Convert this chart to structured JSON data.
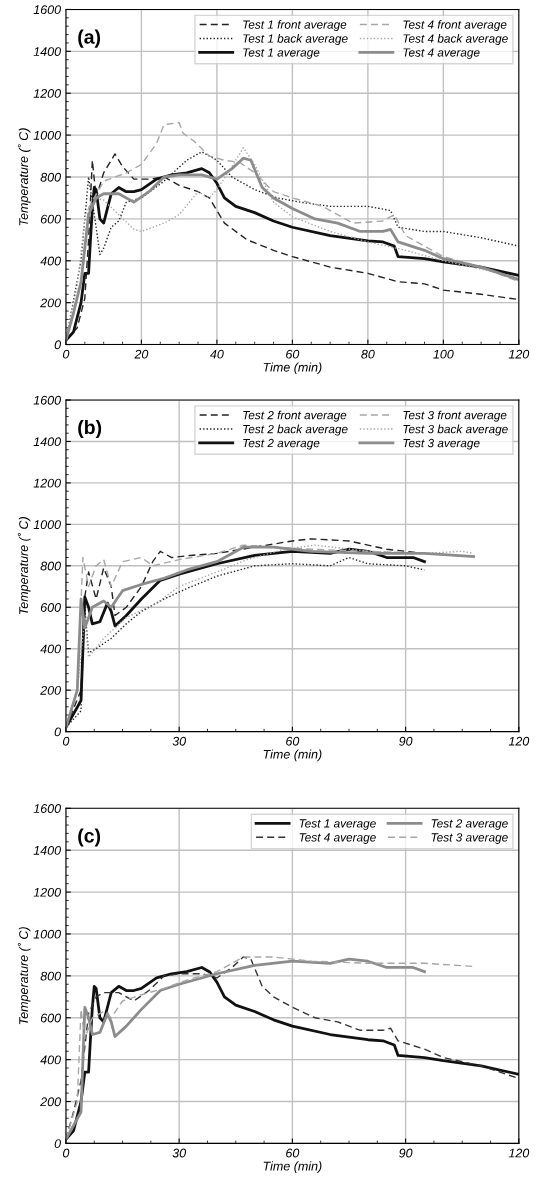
{
  "chart_data": [
    {
      "type": "line",
      "annotations": [
        "(a)"
      ],
      "xlabel": "Time (min)",
      "ylabel": "Temperature (˚ C)",
      "xlim": [
        0,
        120
      ],
      "ylim": [
        0,
        1600
      ],
      "xticks": [
        0,
        20,
        40,
        60,
        80,
        100,
        120
      ],
      "yticks": [
        0,
        200,
        400,
        600,
        800,
        1000,
        1200,
        1400,
        1600
      ],
      "grid": true,
      "legend": "top right",
      "series": [
        {
          "name": "Test 1 front average",
          "color": "#222222",
          "line_style": "dashed",
          "x": [
            0,
            3,
            5,
            6,
            7,
            8,
            10,
            13,
            15,
            18,
            22,
            26,
            30,
            35,
            38,
            42,
            48,
            55,
            60,
            70,
            80,
            88,
            95,
            100,
            110,
            120
          ],
          "values": [
            20,
            80,
            220,
            500,
            880,
            700,
            820,
            910,
            850,
            790,
            790,
            800,
            760,
            730,
            700,
            580,
            500,
            450,
            420,
            370,
            340,
            300,
            290,
            260,
            240,
            215
          ]
        },
        {
          "name": "Test 1 back average",
          "color": "#222222",
          "line_style": "dotted",
          "x": [
            0,
            4,
            6,
            8,
            9,
            10,
            12,
            14,
            16,
            20,
            26,
            32,
            36,
            40,
            44,
            50,
            56,
            62,
            70,
            80,
            86,
            88,
            95,
            100,
            110,
            120
          ],
          "values": [
            20,
            400,
            800,
            560,
            430,
            460,
            560,
            590,
            680,
            700,
            780,
            880,
            920,
            880,
            800,
            740,
            700,
            680,
            660,
            660,
            640,
            560,
            540,
            540,
            510,
            470
          ]
        },
        {
          "name": "Test 1 average",
          "color": "#111111",
          "line_style": "solid",
          "x": [
            0,
            2,
            4,
            5,
            6,
            6.5,
            7,
            7.5,
            8,
            9,
            10,
            11,
            12,
            14,
            16,
            18,
            20,
            24,
            28,
            32,
            36,
            38,
            40,
            42,
            45,
            50,
            55,
            60,
            70,
            80,
            84,
            87,
            88,
            95,
            100,
            110,
            120
          ],
          "values": [
            20,
            60,
            200,
            340,
            340,
            500,
            650,
            750,
            740,
            600,
            580,
            650,
            720,
            750,
            730,
            730,
            740,
            790,
            810,
            820,
            840,
            820,
            770,
            700,
            660,
            630,
            590,
            560,
            520,
            495,
            490,
            470,
            420,
            410,
            395,
            370,
            330
          ]
        },
        {
          "name": "Test 4 front average",
          "color": "#a6a6a6",
          "line_style": "dashed",
          "x": [
            0,
            4,
            6,
            10,
            16,
            20,
            24,
            26,
            30,
            31,
            34,
            38,
            42,
            46,
            50,
            55,
            60,
            68,
            76,
            84,
            87,
            90,
            100,
            110,
            120
          ],
          "values": [
            20,
            300,
            650,
            780,
            820,
            860,
            960,
            1050,
            1060,
            1010,
            970,
            900,
            880,
            870,
            820,
            730,
            700,
            660,
            580,
            590,
            620,
            520,
            420,
            370,
            300
          ]
        },
        {
          "name": "Test 4 back average",
          "color": "#a6a6a6",
          "line_style": "dotted",
          "x": [
            0,
            3,
            5,
            7,
            10,
            14,
            18,
            20,
            26,
            30,
            35,
            38,
            40,
            44,
            47,
            50,
            55,
            60,
            70,
            80,
            90,
            100,
            110,
            120
          ],
          "values": [
            20,
            280,
            600,
            700,
            690,
            620,
            550,
            540,
            580,
            620,
            730,
            700,
            740,
            850,
            940,
            860,
            680,
            610,
            540,
            490,
            450,
            400,
            360,
            320
          ]
        },
        {
          "name": "Test 4 average",
          "color": "#8c8c8c",
          "line_style": "solid",
          "x": [
            0,
            2,
            4,
            6,
            8,
            10,
            14,
            18,
            22,
            26,
            30,
            36,
            40,
            44,
            47,
            49,
            52,
            55,
            60,
            66,
            72,
            78,
            84,
            86,
            88,
            95,
            100,
            110,
            120
          ],
          "values": [
            20,
            150,
            300,
            620,
            700,
            720,
            720,
            680,
            730,
            800,
            810,
            810,
            790,
            840,
            890,
            880,
            750,
            700,
            650,
            600,
            580,
            540,
            540,
            550,
            490,
            450,
            410,
            370,
            310
          ]
        }
      ]
    },
    {
      "type": "line",
      "annotations": [
        "(b)"
      ],
      "xlabel": "Time (min)",
      "ylabel": "Temperature (˚ C)",
      "xlim": [
        0,
        120
      ],
      "ylim": [
        0,
        1600
      ],
      "xticks": [
        0,
        30,
        60,
        90,
        120
      ],
      "yticks": [
        0,
        200,
        400,
        600,
        800,
        1000,
        1200,
        1400,
        1600
      ],
      "grid": true,
      "legend": "top right",
      "series": [
        {
          "name": "Test 2 front average",
          "color": "#222222",
          "line_style": "dashed",
          "x": [
            0,
            4,
            5,
            6,
            8,
            10,
            12,
            13,
            16,
            20,
            23,
            25,
            28,
            33,
            40,
            50,
            60,
            65,
            75,
            85,
            95
          ],
          "values": [
            20,
            200,
            650,
            770,
            640,
            790,
            700,
            560,
            600,
            700,
            820,
            870,
            840,
            850,
            860,
            890,
            920,
            930,
            920,
            880,
            860
          ]
        },
        {
          "name": "Test 2 back average",
          "color": "#222222",
          "line_style": "dotted",
          "x": [
            0,
            4,
            5,
            6,
            8,
            12,
            16,
            20,
            26,
            32,
            40,
            50,
            60,
            70,
            75,
            80,
            90,
            95
          ],
          "values": [
            20,
            100,
            600,
            380,
            400,
            450,
            520,
            580,
            640,
            690,
            750,
            800,
            810,
            800,
            840,
            810,
            800,
            780
          ]
        },
        {
          "name": "Test 2 average",
          "color": "#111111",
          "line_style": "solid",
          "x": [
            0,
            4,
            5,
            6,
            7,
            9,
            11,
            12,
            13,
            16,
            20,
            25,
            30,
            40,
            50,
            60,
            70,
            75,
            80,
            85,
            92,
            95
          ],
          "values": [
            20,
            150,
            650,
            600,
            520,
            530,
            620,
            580,
            510,
            560,
            640,
            730,
            760,
            810,
            850,
            870,
            860,
            880,
            870,
            840,
            840,
            820
          ]
        },
        {
          "name": "Test 3 front average",
          "color": "#a6a6a6",
          "line_style": "dashed",
          "x": [
            0,
            3,
            4.5,
            6,
            8,
            10,
            12,
            15,
            20,
            23,
            30,
            40,
            47,
            55,
            65,
            80,
            95,
            105,
            108
          ],
          "values": [
            20,
            200,
            840,
            700,
            800,
            830,
            700,
            820,
            840,
            800,
            830,
            860,
            900,
            890,
            880,
            870,
            860,
            850,
            840
          ]
        },
        {
          "name": "Test 3 back average",
          "color": "#a6a6a6",
          "line_style": "dotted",
          "x": [
            0,
            3,
            5,
            6,
            10,
            16,
            24,
            30,
            40,
            48,
            58,
            66,
            80,
            95,
            105,
            108
          ],
          "values": [
            20,
            200,
            550,
            360,
            450,
            550,
            620,
            700,
            770,
            830,
            880,
            900,
            870,
            860,
            870,
            860
          ]
        },
        {
          "name": "Test 3 average",
          "color": "#8c8c8c",
          "line_style": "solid",
          "x": [
            0,
            3,
            4,
            5,
            7,
            10,
            12,
            15,
            20,
            26,
            32,
            40,
            47,
            55,
            65,
            80,
            95,
            108
          ],
          "values": [
            20,
            200,
            640,
            500,
            600,
            630,
            600,
            680,
            710,
            740,
            780,
            820,
            890,
            890,
            870,
            860,
            860,
            845
          ]
        }
      ]
    },
    {
      "type": "line",
      "annotations": [
        "(c)"
      ],
      "xlabel": "Time (min)",
      "ylabel": "Temperature (˚ C)",
      "xlim": [
        0,
        120
      ],
      "ylim": [
        0,
        1600
      ],
      "xticks": [
        0,
        30,
        60,
        90,
        120
      ],
      "yticks": [
        0,
        200,
        400,
        600,
        800,
        1000,
        1200,
        1400,
        1600
      ],
      "grid": true,
      "legend": "top right",
      "series": [
        {
          "name": "Test 1 average",
          "color": "#111111",
          "line_style": "solid",
          "x": [
            0,
            2,
            4,
            5,
            6,
            6.5,
            7,
            7.5,
            8,
            9,
            10,
            11,
            12,
            14,
            16,
            18,
            20,
            24,
            28,
            32,
            36,
            38,
            40,
            42,
            45,
            50,
            55,
            60,
            70,
            80,
            84,
            87,
            88,
            95,
            100,
            110,
            120
          ],
          "values": [
            20,
            60,
            200,
            340,
            340,
            500,
            650,
            750,
            740,
            600,
            580,
            650,
            720,
            750,
            730,
            730,
            740,
            790,
            810,
            820,
            840,
            820,
            770,
            700,
            660,
            630,
            590,
            560,
            520,
            495,
            490,
            470,
            420,
            410,
            395,
            370,
            330
          ]
        },
        {
          "name": "Test 4 average",
          "color": "#333333",
          "line_style": "dashed",
          "x": [
            0,
            2,
            4,
            6,
            8,
            10,
            14,
            18,
            22,
            26,
            30,
            36,
            40,
            44,
            47,
            49,
            52,
            55,
            60,
            66,
            72,
            78,
            84,
            86,
            88,
            95,
            100,
            110,
            120
          ],
          "values": [
            20,
            150,
            300,
            620,
            700,
            720,
            720,
            680,
            730,
            800,
            810,
            810,
            790,
            840,
            890,
            880,
            750,
            700,
            650,
            600,
            580,
            540,
            540,
            550,
            490,
            450,
            410,
            370,
            310
          ]
        },
        {
          "name": "Test 2 average",
          "color": "#8c8c8c",
          "line_style": "solid",
          "x": [
            0,
            4,
            5,
            6,
            7,
            9,
            11,
            12,
            13,
            16,
            20,
            25,
            30,
            40,
            50,
            60,
            70,
            75,
            80,
            85,
            92,
            95
          ],
          "values": [
            20,
            150,
            650,
            600,
            520,
            530,
            620,
            580,
            510,
            560,
            640,
            730,
            760,
            810,
            850,
            870,
            860,
            880,
            870,
            840,
            840,
            820
          ]
        },
        {
          "name": "Test 3 average",
          "color": "#a6a6a6",
          "line_style": "dashed",
          "x": [
            0,
            3,
            4,
            5,
            7,
            10,
            12,
            15,
            20,
            26,
            32,
            40,
            47,
            55,
            65,
            80,
            95,
            108
          ],
          "values": [
            20,
            200,
            640,
            500,
            600,
            630,
            600,
            680,
            710,
            740,
            780,
            820,
            890,
            890,
            870,
            860,
            860,
            845
          ]
        }
      ]
    }
  ]
}
